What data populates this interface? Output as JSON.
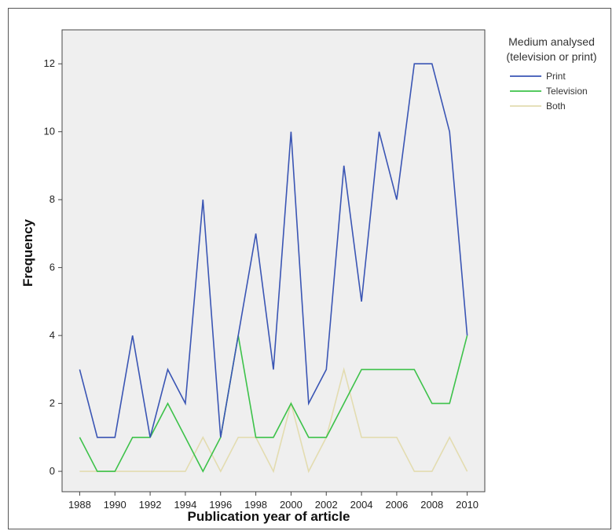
{
  "chart_data": {
    "type": "line",
    "title": "",
    "xlabel": "Publication year of article",
    "ylabel": "Frequency",
    "xlim": [
      1987,
      2011
    ],
    "ylim": [
      -0.6,
      13
    ],
    "x_ticks": [
      "1988",
      "1990",
      "1992",
      "1994",
      "1996",
      "1998",
      "2000",
      "2002",
      "2004",
      "2006",
      "2008",
      "2010"
    ],
    "y_ticks": [
      "0",
      "2",
      "4",
      "6",
      "8",
      "10",
      "12"
    ],
    "x": [
      1988,
      1989,
      1990,
      1991,
      1992,
      1993,
      1994,
      1995,
      1996,
      1997,
      1998,
      1999,
      2000,
      2001,
      2002,
      2003,
      2004,
      2005,
      2006,
      2007,
      2008,
      2009,
      2010
    ],
    "series": [
      {
        "name": "Print",
        "color": "#3a55b4",
        "values": [
          3,
          1,
          1,
          4,
          1,
          3,
          2,
          8,
          1,
          4,
          7,
          3,
          10,
          2,
          3,
          9,
          5,
          10,
          8,
          12,
          12,
          10,
          4
        ]
      },
      {
        "name": "Television",
        "color": "#3dc24a",
        "values": [
          1,
          0,
          0,
          1,
          1,
          2,
          1,
          0,
          1,
          4,
          1,
          1,
          2,
          1,
          1,
          2,
          3,
          3,
          3,
          3,
          2,
          2,
          4
        ]
      },
      {
        "name": "Both",
        "color": "#e3dcb0",
        "values": [
          0,
          0,
          0,
          0,
          0,
          0,
          0,
          1,
          0,
          1,
          1,
          0,
          2,
          0,
          1,
          3,
          1,
          1,
          1,
          0,
          0,
          1,
          0
        ]
      }
    ],
    "grid": false,
    "legend": {
      "title_line1": "Medium analysed",
      "title_line2": "(television or print)",
      "position": "right"
    },
    "plot_background": "#efefef"
  }
}
